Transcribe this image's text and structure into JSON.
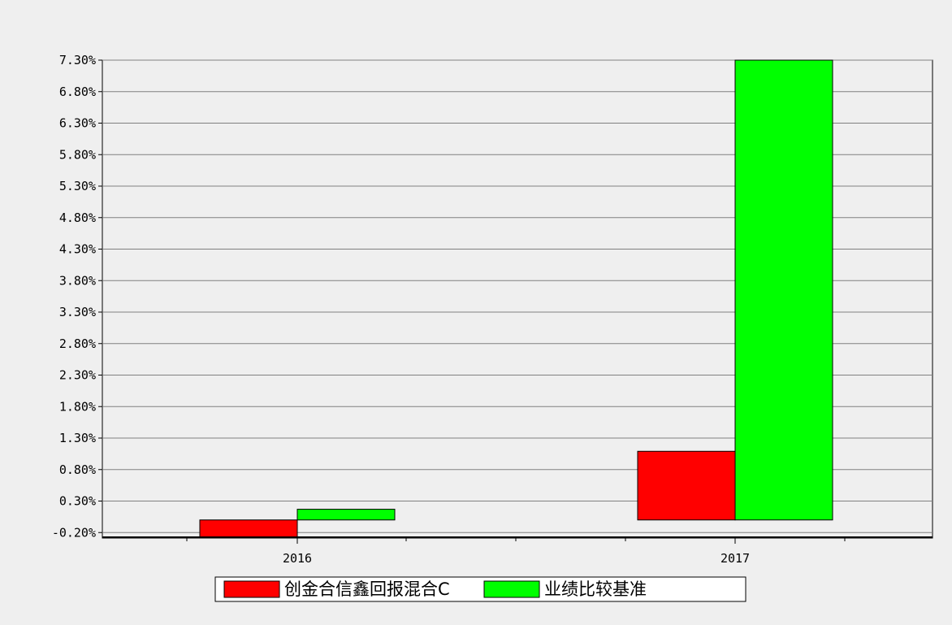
{
  "chart_data": {
    "type": "bar",
    "categories": [
      "2016",
      "2017"
    ],
    "series": [
      {
        "name": "创金合信鑫回报混合C",
        "color": "#ff0000",
        "values": [
          -0.27,
          1.09
        ]
      },
      {
        "name": "业绩比较基准",
        "color": "#00ff00",
        "values": [
          0.17,
          7.3
        ]
      }
    ],
    "y_ticks": [
      "7.30%",
      "6.80%",
      "6.30%",
      "5.80%",
      "5.30%",
      "4.80%",
      "4.30%",
      "3.80%",
      "3.30%",
      "2.80%",
      "2.30%",
      "1.80%",
      "1.30%",
      "0.80%",
      "0.30%",
      "-0.20%"
    ],
    "ylim": [
      -0.27,
      7.3
    ],
    "grid": true,
    "legend_placement": "bottom-center",
    "title": "",
    "xlabel": "",
    "ylabel": ""
  }
}
